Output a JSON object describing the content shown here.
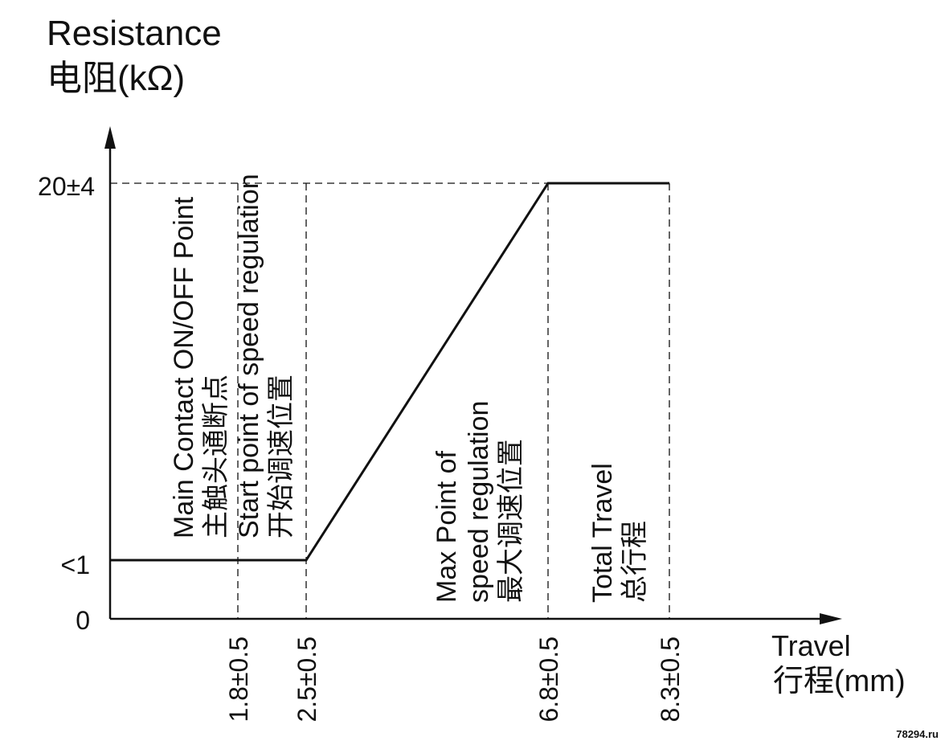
{
  "chart_data": {
    "type": "line",
    "title": "",
    "ylabel": "Resistance",
    "ylabel_sub": "电阻(kΩ)",
    "xlabel": "Travel",
    "xlabel_sub": "行程(mm)",
    "y_ticks": [
      "20±4",
      "<1",
      "0"
    ],
    "x_ticks": [
      "1.8±0.5",
      "2.5±0.5",
      "6.8±0.5",
      "8.3±0.5"
    ],
    "series": [
      {
        "x": [
          0,
          2.5,
          6.8,
          8.3
        ],
        "y": [
          1,
          1,
          20,
          20
        ]
      }
    ],
    "annotations": [
      {
        "x": 1.8,
        "lines": [
          "Main Contact ON/OFF Point",
          "主触头通断点"
        ]
      },
      {
        "x": 2.5,
        "lines": [
          "Start point of speed regulation",
          "开始调速位置"
        ]
      },
      {
        "x": 6.8,
        "lines": [
          "Max Point of",
          "speed regulation",
          "最大调速位置"
        ]
      },
      {
        "x": 8.3,
        "lines": [
          "Total Travel",
          "总行程"
        ]
      }
    ],
    "grid": false,
    "line_color": "#111111"
  },
  "watermark": "78294.ru"
}
